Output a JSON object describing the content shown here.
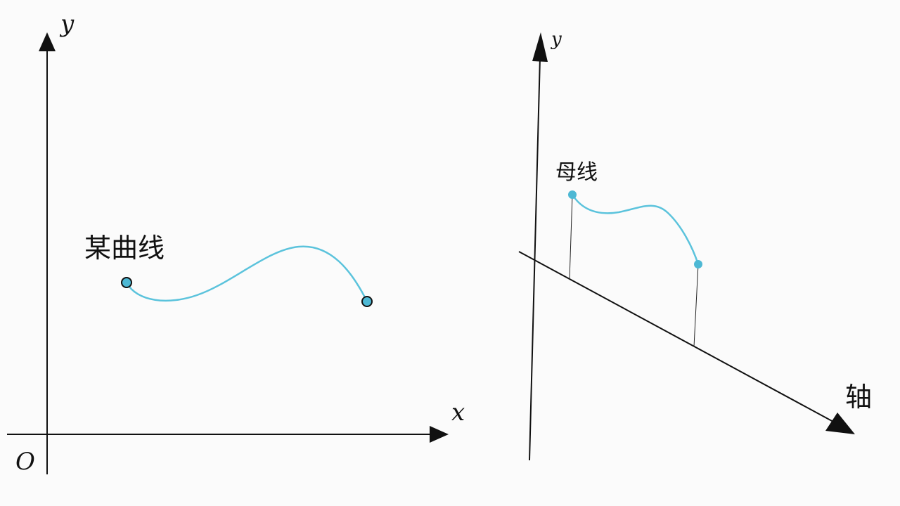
{
  "left_panel": {
    "y_axis_label": "y",
    "x_axis_label": "x",
    "origin_label": "O",
    "curve_label": "某曲线"
  },
  "right_panel": {
    "y_axis_label": "y",
    "axis_label": "轴",
    "generatrix_label": "母线"
  },
  "colors": {
    "curve": "#5bc3dc",
    "axis": "#111111",
    "point_fill": "#4db8d4",
    "background": "#fbfbfb"
  }
}
